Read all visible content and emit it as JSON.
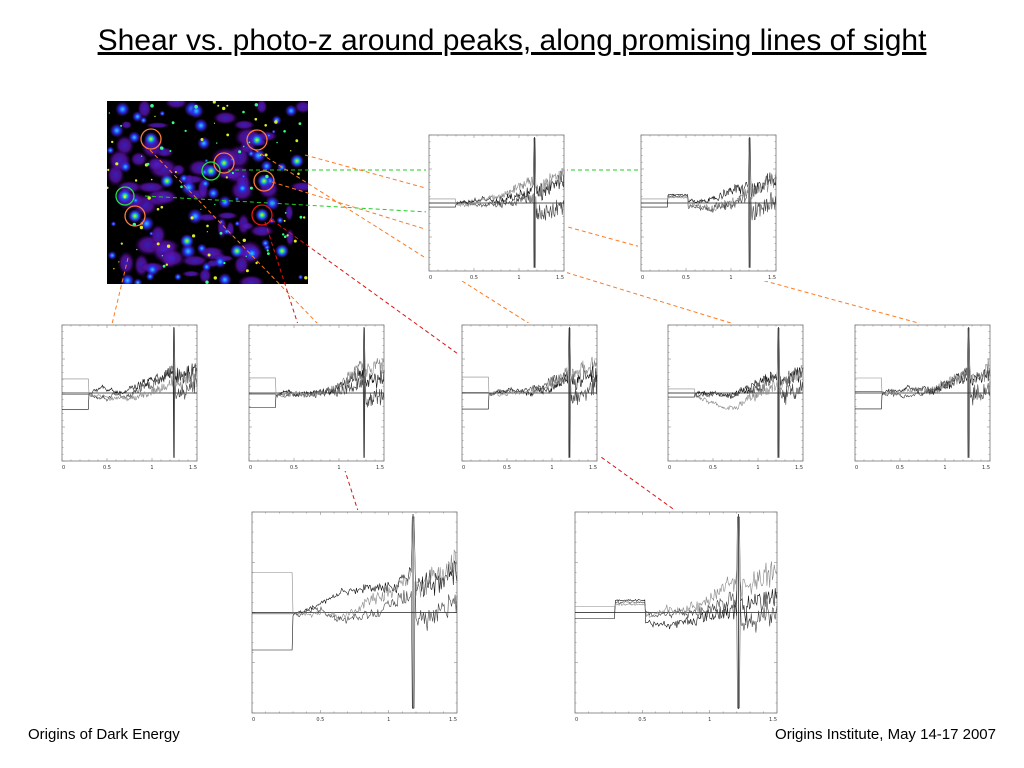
{
  "slide": {
    "title": "Shear vs. photo-z around peaks, along promising lines of sight"
  },
  "footer": {
    "left": "Origins of Dark Energy",
    "right": "Origins Institute, May 14-17 2007"
  },
  "mass_map": {
    "circle_colors": [
      "#ff7a3a",
      "#22dd44",
      "#ee1111"
    ]
  },
  "colors": {
    "green_connector": "#22cc22",
    "orange_connector": "#ff7a20",
    "red_connector": "#dd1111"
  },
  "panel_ticks": [
    "0",
    "0.5",
    "1",
    "1.5"
  ]
}
